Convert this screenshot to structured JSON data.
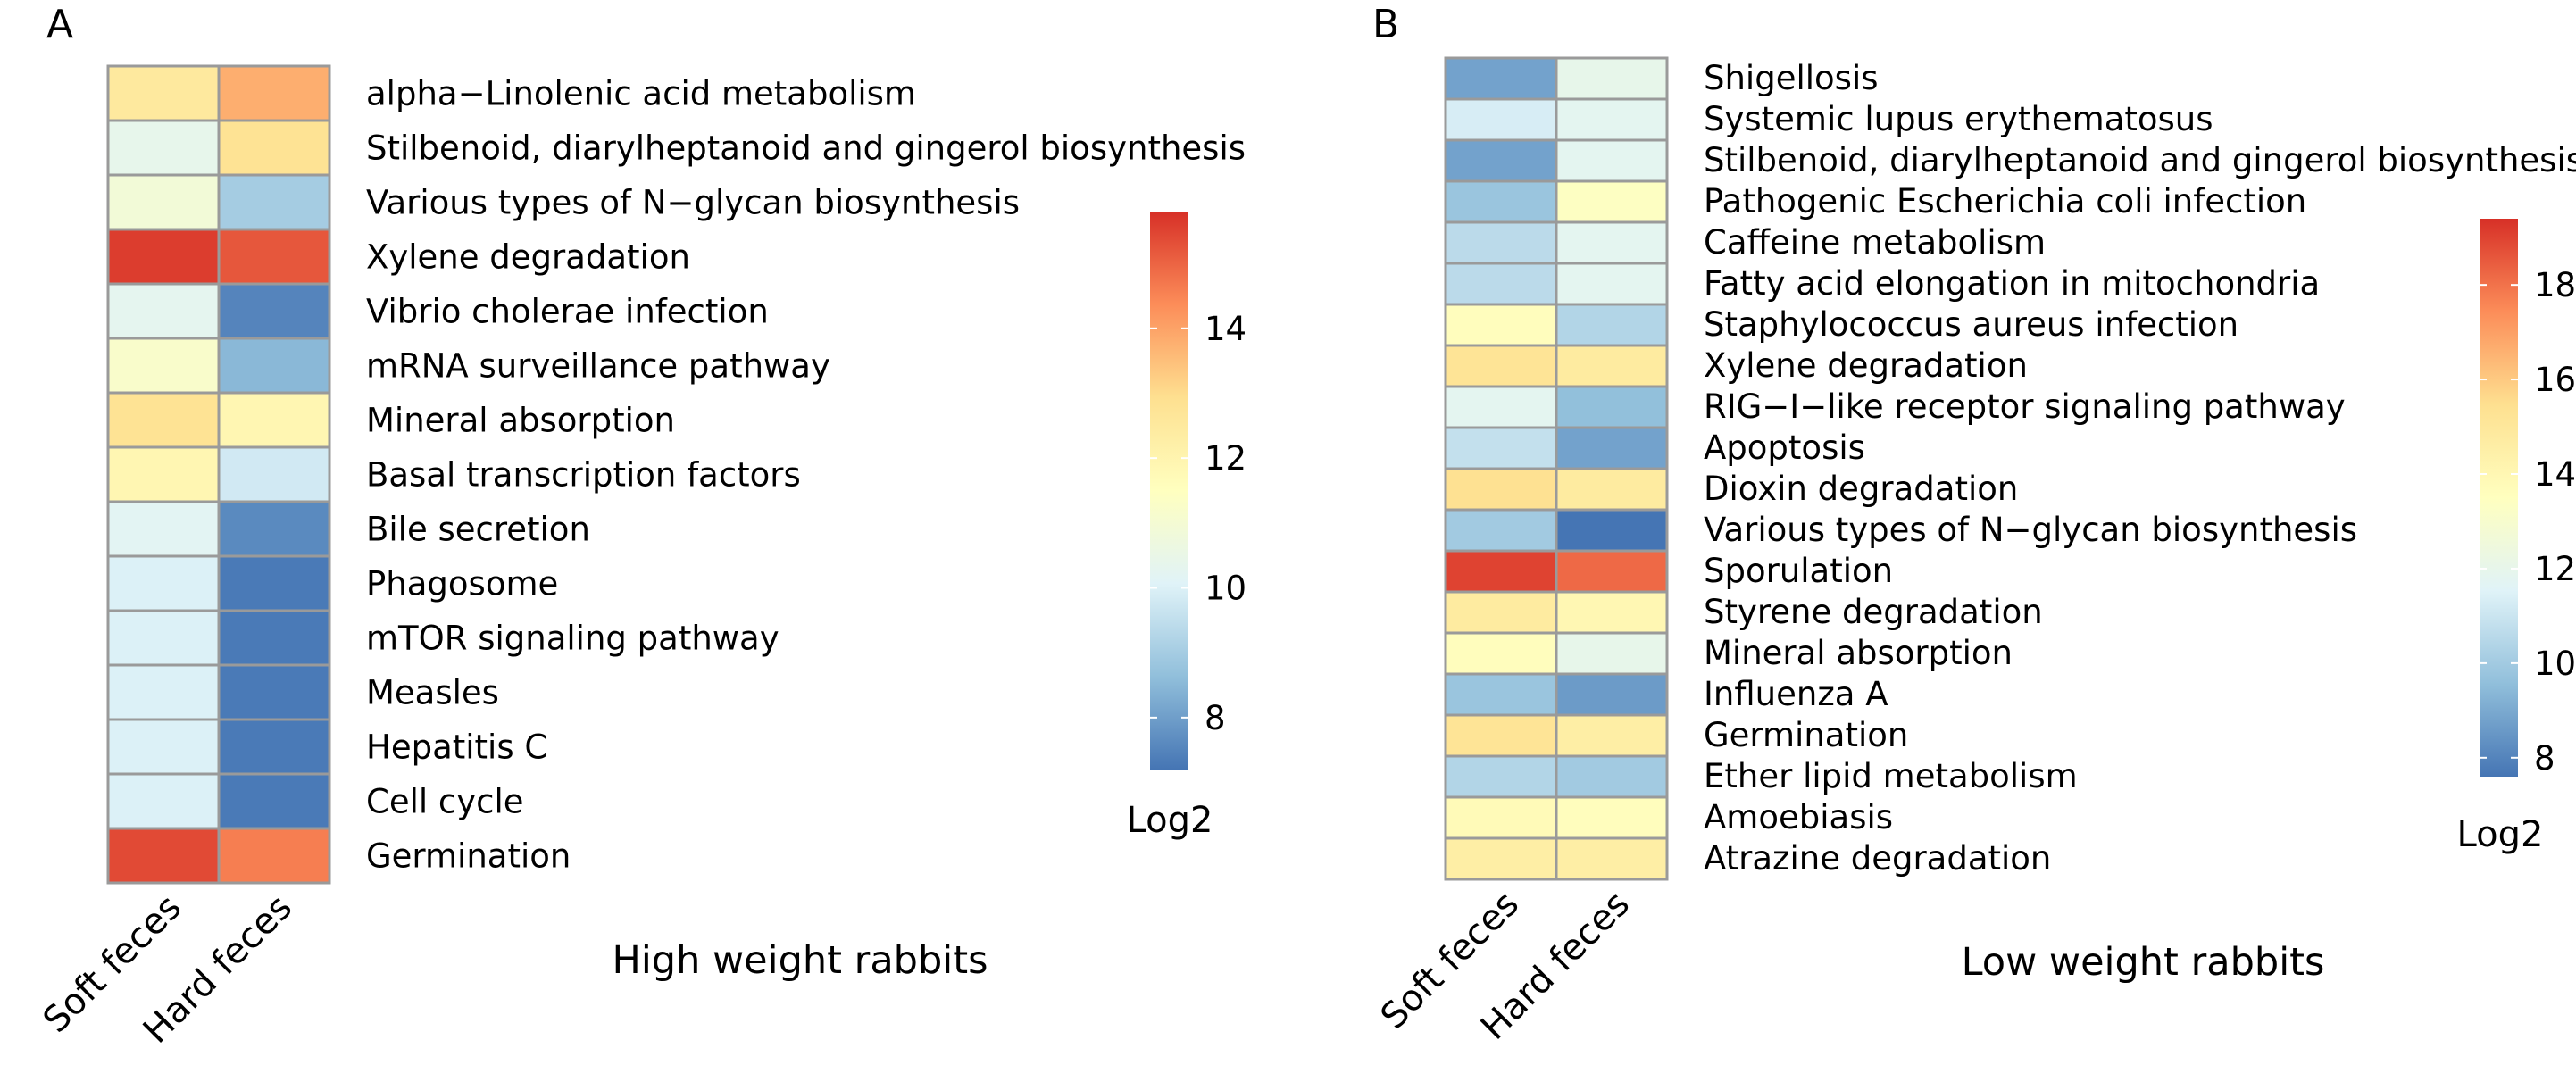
{
  "chart_data": [
    {
      "type": "heatmap",
      "panel_label": "A",
      "title": "High weight rabbits",
      "columns": [
        "Soft feces",
        "Hard feces"
      ],
      "rows": [
        "alpha−Linolenic acid metabolism",
        "Stilbenoid, diarylheptanoid and gingerol biosynthesis",
        "Various types of N−glycan biosynthesis",
        "Xylene degradation",
        "Vibrio cholerae infection",
        "mRNA surveillance pathway",
        "Mineral absorption",
        "Basal transcription factors",
        "Bile secretion",
        "Phagosome",
        "mTOR signaling pathway",
        "Measles",
        "Hepatitis C",
        "Cell cycle",
        "Germination"
      ],
      "values": [
        [
          12.5,
          13.8
        ],
        [
          10.4,
          12.8
        ],
        [
          10.9,
          9.0
        ],
        [
          15.6,
          15.2
        ],
        [
          10.3,
          7.5
        ],
        [
          11.2,
          8.5
        ],
        [
          12.8,
          11.9
        ],
        [
          11.9,
          9.8
        ],
        [
          10.2,
          7.6
        ],
        [
          10.0,
          7.3
        ],
        [
          10.0,
          7.3
        ],
        [
          10.0,
          7.3
        ],
        [
          10.0,
          7.3
        ],
        [
          10.0,
          7.3
        ],
        [
          15.4,
          14.6
        ]
      ],
      "color_scale": {
        "min": 7.2,
        "max": 15.8,
        "ticks": [
          8,
          10,
          12,
          14
        ],
        "title": "Log2",
        "colors": [
          "#4575b4",
          "#91bfdb",
          "#e0f3f8",
          "#ffffbf",
          "#fee090",
          "#fc8d59",
          "#d73027"
        ]
      }
    },
    {
      "type": "heatmap",
      "panel_label": "B",
      "title": "Low weight rabbits",
      "columns": [
        "Soft feces",
        "Hard feces"
      ],
      "rows": [
        "Shigellosis",
        "Systemic lupus erythematosus",
        "Stilbenoid, diarylheptanoid and gingerol biosynthesis",
        "Pathogenic Escherichia coli infection",
        "Caffeine metabolism",
        "Fatty acid elongation in mitochondria",
        "Staphylococcus aureus infection",
        "Xylene degradation",
        "RIG−I−like receptor signaling pathway",
        "Apoptosis",
        "Dioxin degradation",
        "Various types of N−glycan biosynthesis",
        "Sporulation",
        "Styrene degradation",
        "Mineral absorption",
        "Influenza A",
        "Germination",
        "Ether lipid metabolism",
        "Amoebiasis",
        "Atrazine degradation"
      ],
      "values": [
        [
          8.8,
          12.0
        ],
        [
          11.3,
          11.8
        ],
        [
          8.8,
          11.8
        ],
        [
          9.8,
          13.4
        ],
        [
          10.6,
          11.8
        ],
        [
          10.6,
          11.8
        ],
        [
          13.6,
          10.4
        ],
        [
          15.2,
          14.8
        ],
        [
          11.8,
          9.6
        ],
        [
          10.8,
          8.8
        ],
        [
          15.4,
          14.8
        ],
        [
          10.0,
          7.6
        ],
        [
          19.0,
          18.2
        ],
        [
          14.8,
          14.0
        ],
        [
          13.6,
          12.0
        ],
        [
          9.8,
          8.6
        ],
        [
          15.2,
          14.6
        ],
        [
          10.4,
          10.0
        ],
        [
          13.8,
          13.6
        ],
        [
          14.6,
          14.6
        ]
      ],
      "color_scale": {
        "min": 7.6,
        "max": 19.4,
        "ticks": [
          8,
          10,
          12,
          14,
          16,
          18
        ],
        "title": "Log2",
        "colors": [
          "#4575b4",
          "#91bfdb",
          "#e0f3f8",
          "#ffffbf",
          "#fee090",
          "#fc8d59",
          "#d73027"
        ]
      }
    }
  ]
}
